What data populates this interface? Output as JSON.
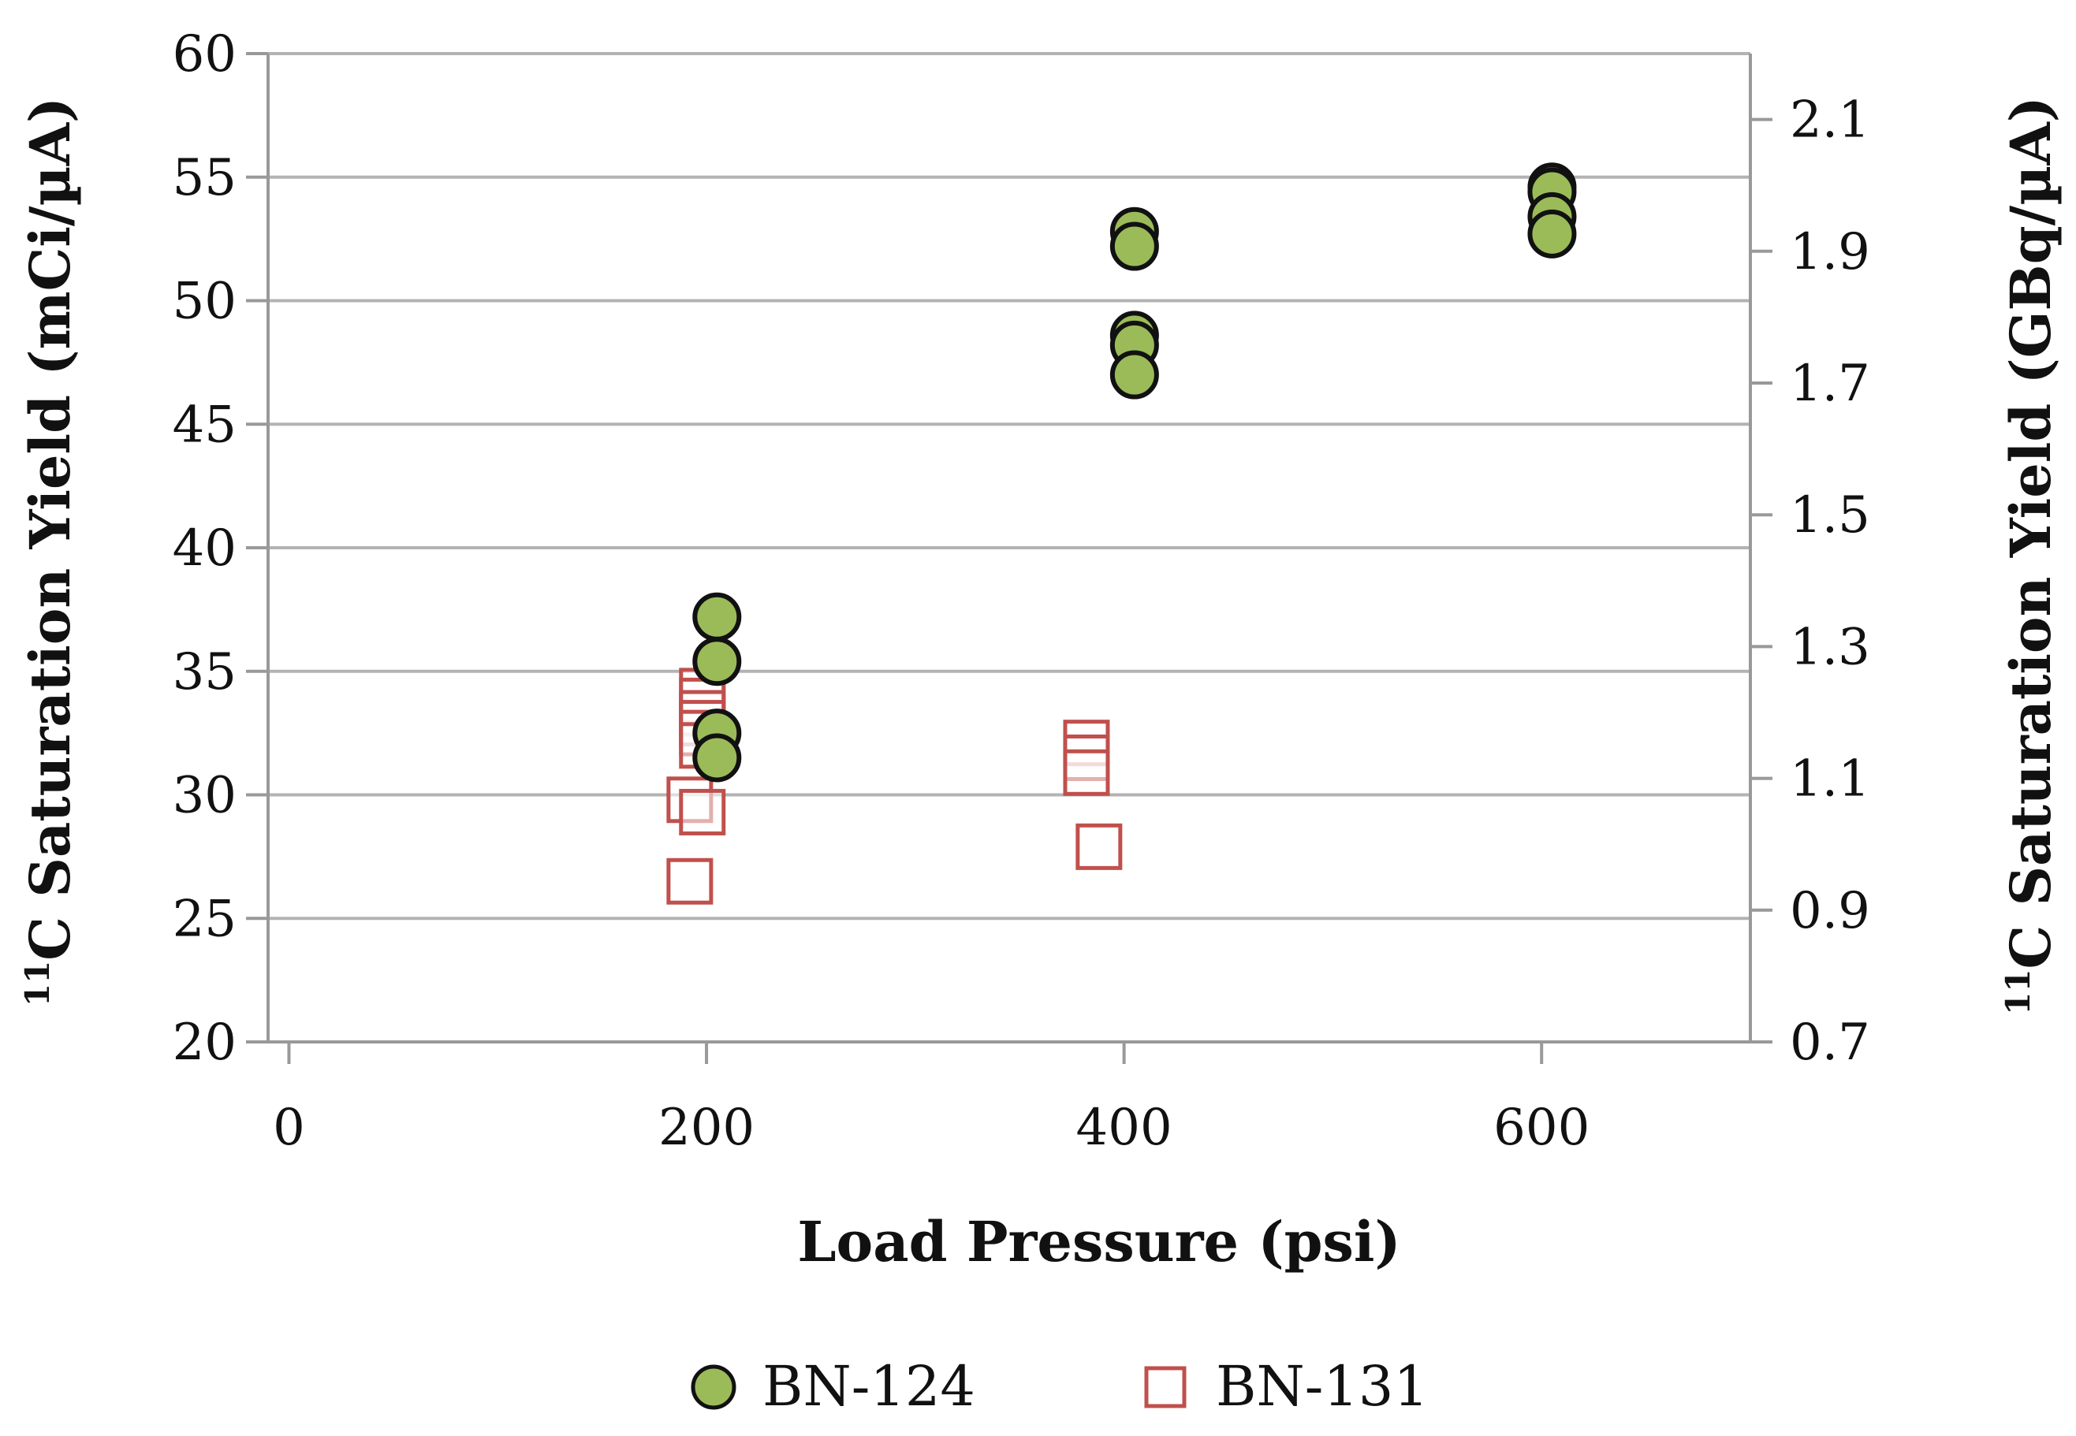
{
  "chart_data": {
    "type": "scatter",
    "title": "",
    "xlabel": "Load Pressure (psi)",
    "ylabel_left": {
      "prefix": "11",
      "text": "C Saturation Yield (mCi/µA)"
    },
    "ylabel_right": {
      "prefix": "11",
      "text": "C Saturation Yield (GBq/µA)"
    },
    "xlim": [
      -10,
      700
    ],
    "ylim_left": [
      20,
      60
    ],
    "ylim_right": [
      0.7,
      2.2
    ],
    "x_ticks": [
      0,
      200,
      400,
      600
    ],
    "y_ticks_left": [
      20,
      25,
      30,
      35,
      40,
      45,
      50,
      55,
      60
    ],
    "y_ticks_right": [
      "0.7",
      "0.9",
      "1.1",
      "1.3",
      "1.5",
      "1.7",
      "1.9",
      "2.1"
    ],
    "grid": true,
    "legend_position": "bottom",
    "series": [
      {
        "name": "BN-124",
        "marker": "circle",
        "color": "#9bbb59",
        "edge_color": "#111111",
        "points": [
          {
            "x": 205,
            "y": 37.2
          },
          {
            "x": 205,
            "y": 35.4
          },
          {
            "x": 205,
            "y": 32.5
          },
          {
            "x": 205,
            "y": 31.5
          },
          {
            "x": 405,
            "y": 52.8
          },
          {
            "x": 405,
            "y": 52.2
          },
          {
            "x": 405,
            "y": 48.6
          },
          {
            "x": 405,
            "y": 48.2
          },
          {
            "x": 405,
            "y": 47.0
          },
          {
            "x": 605,
            "y": 54.6
          },
          {
            "x": 605,
            "y": 54.4
          },
          {
            "x": 605,
            "y": 53.4
          },
          {
            "x": 605,
            "y": 52.7
          }
        ]
      },
      {
        "name": "BN-131",
        "marker": "square",
        "color": "#c0504d",
        "points": [
          {
            "x": 198,
            "y": 34.2
          },
          {
            "x": 198,
            "y": 33.8
          },
          {
            "x": 198,
            "y": 33.3
          },
          {
            "x": 198,
            "y": 32.9
          },
          {
            "x": 198,
            "y": 32.5
          },
          {
            "x": 198,
            "y": 32.0
          },
          {
            "x": 192,
            "y": 29.8
          },
          {
            "x": 198,
            "y": 29.3
          },
          {
            "x": 192,
            "y": 26.5
          },
          {
            "x": 382,
            "y": 32.1
          },
          {
            "x": 382,
            "y": 31.5
          },
          {
            "x": 382,
            "y": 30.9
          },
          {
            "x": 388,
            "y": 27.9
          }
        ]
      }
    ]
  }
}
